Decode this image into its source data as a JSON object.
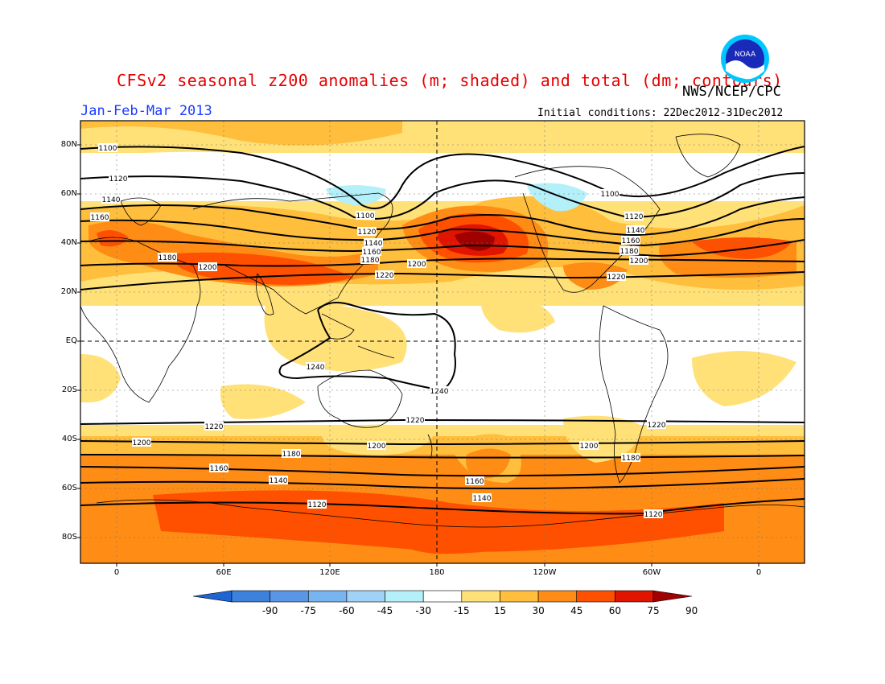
{
  "title": "CFSv2 seasonal z200 anomalies (m; shaded) and total (dm; contours)",
  "agency": "NWS/NCEP/CPC",
  "logo_text": "NOAA",
  "period": "Jan-Feb-Mar 2013",
  "initial_conditions": "Initial conditions: 22Dec2012-31Dec2012",
  "map": {
    "lat_labels": [
      "80N",
      "60N",
      "40N",
      "20N",
      "EQ",
      "20S",
      "40S",
      "60S",
      "80S"
    ],
    "lon_labels": [
      "0",
      "60E",
      "120E",
      "180",
      "120W",
      "60W",
      "0"
    ],
    "contour_labels": [
      "1100",
      "1120",
      "1140",
      "1160",
      "1180",
      "1200",
      "1220",
      "1240"
    ],
    "colors": {
      "ocean_bg": "#ffffff",
      "land_line": "#000000",
      "contour": "#000000"
    }
  },
  "colorbar": {
    "labels": [
      "-90",
      "-75",
      "-60",
      "-45",
      "-30",
      "-15",
      "15",
      "30",
      "45",
      "60",
      "75",
      "90"
    ],
    "colors": [
      "#1e64d2",
      "#3c82dc",
      "#5a96e6",
      "#78b4f0",
      "#a0d2f8",
      "#b4f0fa",
      "#ffffff",
      "#ffe178",
      "#ffbe3c",
      "#ff8c14",
      "#ff5000",
      "#e11400",
      "#a00000"
    ]
  }
}
